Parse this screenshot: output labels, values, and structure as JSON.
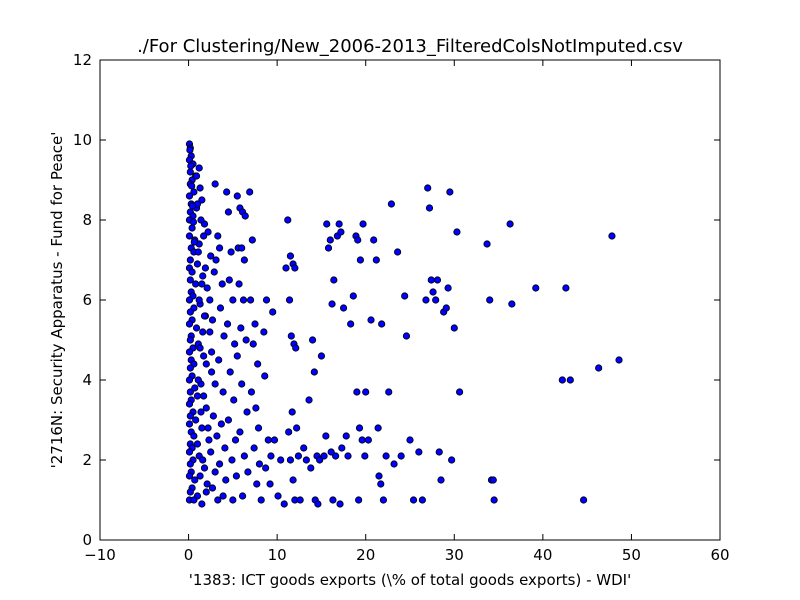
{
  "chart_data": {
    "type": "scatter",
    "title": "./For Clustering/New_2006-2013_FilteredColsNotImputed.csv",
    "xlabel": "'1383: ICT goods exports  (\\% of total goods exports) - WDI'",
    "ylabel": "'2716N: Security Apparatus - Fund for Peace'",
    "xlim": [
      -10,
      60
    ],
    "ylim": [
      0,
      12
    ],
    "xticks": [
      -10,
      0,
      10,
      20,
      30,
      40,
      50,
      60
    ],
    "yticks": [
      0,
      2,
      4,
      6,
      8,
      10,
      12
    ],
    "xtick_labels": [
      "−10",
      "0",
      "10",
      "20",
      "30",
      "40",
      "50",
      "60"
    ],
    "ytick_labels": [
      "0",
      "2",
      "4",
      "6",
      "8",
      "10",
      "12"
    ],
    "grid": false,
    "marker_color": "#0000ff",
    "marker_edge_color": "#000000",
    "points": [
      [
        0.1,
        9.9
      ],
      [
        0.2,
        9.8
      ],
      [
        0.3,
        9.6
      ],
      [
        0.1,
        9.5
      ],
      [
        0.5,
        9.4
      ],
      [
        0.2,
        9.2
      ],
      [
        0.8,
        9.1
      ],
      [
        1.2,
        9.3
      ],
      [
        0.4,
        9.0
      ],
      [
        0.2,
        8.9
      ],
      [
        0.6,
        8.7
      ],
      [
        0.1,
        8.6
      ],
      [
        1.5,
        8.5
      ],
      [
        0.3,
        8.4
      ],
      [
        0.9,
        8.3
      ],
      [
        0.2,
        8.2
      ],
      [
        0.5,
        8.1
      ],
      [
        0.1,
        8.0
      ],
      [
        1.8,
        7.9
      ],
      [
        0.4,
        7.8
      ],
      [
        2.2,
        7.7
      ],
      [
        0.1,
        7.6
      ],
      [
        0.7,
        7.5
      ],
      [
        1.2,
        7.4
      ],
      [
        0.3,
        7.3
      ],
      [
        0.6,
        7.2
      ],
      [
        2.5,
        7.1
      ],
      [
        0.2,
        7.0
      ],
      [
        1.0,
        6.9
      ],
      [
        0.1,
        6.8
      ],
      [
        0.4,
        6.7
      ],
      [
        1.6,
        6.6
      ],
      [
        0.2,
        6.5
      ],
      [
        0.8,
        6.4
      ],
      [
        2.1,
        6.3
      ],
      [
        0.3,
        6.2
      ],
      [
        0.5,
        6.1
      ],
      [
        0.1,
        6.0
      ],
      [
        1.3,
        5.9
      ],
      [
        0.6,
        5.8
      ],
      [
        0.2,
        5.7
      ],
      [
        1.9,
        5.6
      ],
      [
        0.4,
        5.5
      ],
      [
        0.1,
        5.4
      ],
      [
        0.9,
        5.3
      ],
      [
        2.4,
        5.2
      ],
      [
        0.3,
        5.1
      ],
      [
        0.2,
        5.0
      ],
      [
        1.1,
        4.9
      ],
      [
        0.5,
        4.8
      ],
      [
        0.1,
        4.7
      ],
      [
        1.7,
        4.6
      ],
      [
        0.3,
        4.5
      ],
      [
        0.6,
        4.4
      ],
      [
        0.2,
        4.3
      ],
      [
        2.6,
        4.2
      ],
      [
        0.4,
        4.1
      ],
      [
        0.1,
        4.0
      ],
      [
        1.4,
        3.9
      ],
      [
        0.7,
        3.8
      ],
      [
        0.2,
        3.7
      ],
      [
        1.0,
        3.6
      ],
      [
        0.3,
        3.5
      ],
      [
        0.1,
        3.4
      ],
      [
        2.0,
        3.3
      ],
      [
        0.5,
        3.2
      ],
      [
        0.2,
        3.1
      ],
      [
        0.8,
        3.0
      ],
      [
        0.1,
        2.9
      ],
      [
        1.5,
        2.8
      ],
      [
        0.3,
        2.7
      ],
      [
        0.6,
        2.6
      ],
      [
        2.3,
        2.5
      ],
      [
        0.2,
        2.4
      ],
      [
        0.4,
        2.3
      ],
      [
        0.1,
        2.2
      ],
      [
        1.2,
        2.1
      ],
      [
        0.5,
        2.0
      ],
      [
        0.2,
        1.9
      ],
      [
        1.8,
        1.8
      ],
      [
        0.3,
        1.7
      ],
      [
        0.1,
        1.6
      ],
      [
        0.7,
        1.5
      ],
      [
        2.1,
        1.4
      ],
      [
        0.4,
        1.3
      ],
      [
        0.2,
        1.2
      ],
      [
        1.0,
        1.1
      ],
      [
        0.1,
        1.0
      ],
      [
        1.5,
        0.9
      ],
      [
        0.6,
        1.0
      ],
      [
        0.9,
        9.1
      ],
      [
        1.3,
        8.8
      ],
      [
        1.0,
        8.4
      ],
      [
        1.4,
        8.0
      ],
      [
        1.7,
        7.6
      ],
      [
        1.1,
        7.2
      ],
      [
        1.9,
        6.8
      ],
      [
        1.5,
        6.4
      ],
      [
        1.2,
        6.0
      ],
      [
        1.8,
        5.6
      ],
      [
        1.6,
        5.2
      ],
      [
        1.3,
        4.8
      ],
      [
        2.0,
        4.4
      ],
      [
        1.1,
        4.0
      ],
      [
        1.7,
        3.6
      ],
      [
        1.4,
        3.2
      ],
      [
        2.2,
        2.8
      ],
      [
        1.0,
        2.4
      ],
      [
        1.6,
        2.0
      ],
      [
        1.3,
        1.6
      ],
      [
        2.0,
        1.2
      ],
      [
        2.4,
        6.0
      ],
      [
        2.7,
        5.5
      ],
      [
        2.9,
        6.7
      ],
      [
        3.1,
        7.0
      ],
      [
        2.6,
        4.7
      ],
      [
        3.0,
        3.9
      ],
      [
        2.8,
        3.1
      ],
      [
        3.2,
        2.6
      ],
      [
        2.5,
        2.2
      ],
      [
        3.0,
        1.7
      ],
      [
        2.7,
        1.3
      ],
      [
        3.3,
        1.0
      ],
      [
        3.5,
        7.3
      ],
      [
        3.8,
        6.4
      ],
      [
        3.6,
        5.8
      ],
      [
        4.0,
        5.1
      ],
      [
        3.4,
        4.5
      ],
      [
        3.9,
        3.7
      ],
      [
        3.7,
        2.9
      ],
      [
        4.1,
        2.3
      ],
      [
        3.5,
        1.9
      ],
      [
        4.2,
        1.5
      ],
      [
        3.9,
        1.1
      ],
      [
        3.0,
        8.9
      ],
      [
        3.3,
        7.6
      ],
      [
        4.3,
        8.7
      ],
      [
        4.5,
        8.2
      ],
      [
        4.8,
        7.2
      ],
      [
        4.6,
        6.5
      ],
      [
        5.0,
        6.0
      ],
      [
        4.4,
        5.4
      ],
      [
        5.2,
        4.9
      ],
      [
        4.7,
        4.2
      ],
      [
        5.1,
        3.5
      ],
      [
        4.5,
        3.0
      ],
      [
        5.3,
        2.5
      ],
      [
        4.9,
        2.0
      ],
      [
        5.4,
        1.6
      ],
      [
        5.0,
        1.0
      ],
      [
        5.5,
        8.6
      ],
      [
        5.8,
        8.3
      ],
      [
        6.1,
        8.2
      ],
      [
        6.4,
        8.1
      ],
      [
        5.6,
        7.3
      ],
      [
        6.0,
        7.3
      ],
      [
        6.3,
        7.0
      ],
      [
        5.7,
        6.4
      ],
      [
        6.2,
        6.0
      ],
      [
        5.9,
        5.3
      ],
      [
        6.5,
        5.0
      ],
      [
        5.5,
        4.6
      ],
      [
        6.0,
        3.9
      ],
      [
        6.6,
        3.2
      ],
      [
        5.8,
        2.7
      ],
      [
        6.3,
        2.1
      ],
      [
        6.7,
        1.7
      ],
      [
        6.1,
        1.1
      ],
      [
        6.9,
        8.7
      ],
      [
        7.2,
        7.5
      ],
      [
        7.0,
        6.0
      ],
      [
        7.5,
        5.4
      ],
      [
        7.3,
        4.9
      ],
      [
        7.8,
        4.4
      ],
      [
        7.1,
        3.7
      ],
      [
        7.6,
        3.3
      ],
      [
        7.9,
        2.8
      ],
      [
        7.4,
        2.3
      ],
      [
        8.0,
        1.9
      ],
      [
        7.7,
        1.4
      ],
      [
        8.2,
        1.0
      ],
      [
        8.5,
        5.2
      ],
      [
        8.8,
        6.0
      ],
      [
        8.6,
        4.1
      ],
      [
        9.0,
        2.5
      ],
      [
        9.3,
        2.1
      ],
      [
        8.7,
        1.8
      ],
      [
        9.2,
        1.4
      ],
      [
        9.5,
        5.7
      ],
      [
        9.7,
        2.5
      ],
      [
        10.1,
        1.1
      ],
      [
        10.4,
        2.0
      ],
      [
        10.8,
        0.9
      ],
      [
        11.0,
        6.8
      ],
      [
        11.2,
        8.0
      ],
      [
        11.5,
        7.1
      ],
      [
        11.8,
        6.9
      ],
      [
        12.0,
        6.8
      ],
      [
        11.4,
        6.0
      ],
      [
        11.6,
        5.1
      ],
      [
        11.9,
        4.9
      ],
      [
        12.1,
        4.8
      ],
      [
        11.3,
        2.7
      ],
      [
        11.7,
        3.2
      ],
      [
        12.2,
        2.8
      ],
      [
        11.5,
        2.0
      ],
      [
        11.8,
        1.5
      ],
      [
        12.0,
        1.0
      ],
      [
        12.4,
        2.1
      ],
      [
        12.6,
        1.0
      ],
      [
        13.0,
        2.3
      ],
      [
        13.3,
        2.0
      ],
      [
        13.6,
        3.5
      ],
      [
        13.8,
        1.8
      ],
      [
        14.0,
        5.0
      ],
      [
        14.2,
        4.2
      ],
      [
        14.5,
        2.1
      ],
      [
        14.8,
        2.0
      ],
      [
        14.3,
        1.0
      ],
      [
        14.6,
        0.9
      ],
      [
        15.0,
        4.6
      ],
      [
        15.3,
        2.1
      ],
      [
        15.6,
        7.9
      ],
      [
        15.8,
        7.3
      ],
      [
        16.0,
        7.5
      ],
      [
        16.2,
        5.9
      ],
      [
        16.4,
        6.5
      ],
      [
        15.5,
        2.6
      ],
      [
        16.1,
        2.2
      ],
      [
        16.6,
        2.1
      ],
      [
        16.3,
        1.0
      ],
      [
        16.8,
        7.6
      ],
      [
        17.0,
        7.9
      ],
      [
        17.2,
        7.7
      ],
      [
        17.5,
        5.8
      ],
      [
        17.3,
        2.3
      ],
      [
        17.8,
        2.6
      ],
      [
        18.0,
        2.1
      ],
      [
        17.1,
        0.9
      ],
      [
        18.3,
        5.4
      ],
      [
        18.6,
        6.1
      ],
      [
        18.9,
        7.6
      ],
      [
        19.1,
        7.5
      ],
      [
        19.4,
        7.0
      ],
      [
        19.7,
        7.9
      ],
      [
        19.0,
        3.7
      ],
      [
        19.3,
        2.8
      ],
      [
        19.6,
        2.5
      ],
      [
        19.9,
        2.1
      ],
      [
        19.2,
        1.0
      ],
      [
        20.0,
        3.7
      ],
      [
        20.3,
        2.5
      ],
      [
        20.6,
        5.5
      ],
      [
        20.9,
        7.5
      ],
      [
        21.2,
        7.0
      ],
      [
        21.5,
        1.6
      ],
      [
        21.8,
        5.4
      ],
      [
        21.4,
        2.8
      ],
      [
        21.7,
        1.4
      ],
      [
        22.0,
        1.0
      ],
      [
        22.3,
        2.1
      ],
      [
        22.6,
        3.7
      ],
      [
        22.9,
        8.4
      ],
      [
        23.2,
        1.9
      ],
      [
        23.6,
        7.2
      ],
      [
        24.0,
        2.1
      ],
      [
        24.4,
        6.1
      ],
      [
        24.6,
        5.1
      ],
      [
        25.0,
        2.5
      ],
      [
        25.4,
        1.0
      ],
      [
        26.0,
        2.2
      ],
      [
        26.4,
        1.0
      ],
      [
        26.8,
        6.0
      ],
      [
        27.0,
        8.8
      ],
      [
        27.2,
        8.3
      ],
      [
        27.4,
        6.5
      ],
      [
        27.6,
        6.2
      ],
      [
        27.9,
        6.0
      ],
      [
        28.1,
        6.5
      ],
      [
        28.3,
        2.2
      ],
      [
        28.5,
        1.5
      ],
      [
        28.8,
        5.7
      ],
      [
        29.1,
        5.8
      ],
      [
        29.3,
        6.3
      ],
      [
        29.5,
        8.7
      ],
      [
        29.7,
        2.0
      ],
      [
        30.0,
        5.3
      ],
      [
        30.3,
        7.7
      ],
      [
        30.6,
        3.7
      ],
      [
        33.7,
        7.4
      ],
      [
        34.0,
        6.0
      ],
      [
        34.2,
        1.5
      ],
      [
        34.4,
        1.5
      ],
      [
        34.5,
        1.0
      ],
      [
        36.3,
        7.9
      ],
      [
        36.5,
        5.9
      ],
      [
        39.2,
        6.3
      ],
      [
        42.2,
        4.0
      ],
      [
        42.6,
        6.3
      ],
      [
        43.1,
        4.0
      ],
      [
        44.6,
        1.0
      ],
      [
        46.3,
        4.3
      ],
      [
        47.8,
        7.6
      ],
      [
        48.6,
        4.5
      ],
      [
        0.15,
        9.75
      ],
      [
        0.25,
        9.35
      ],
      [
        0.35,
        8.85
      ],
      [
        0.45,
        8.35
      ],
      [
        0.55,
        7.95
      ],
      [
        0.65,
        7.45
      ]
    ]
  }
}
